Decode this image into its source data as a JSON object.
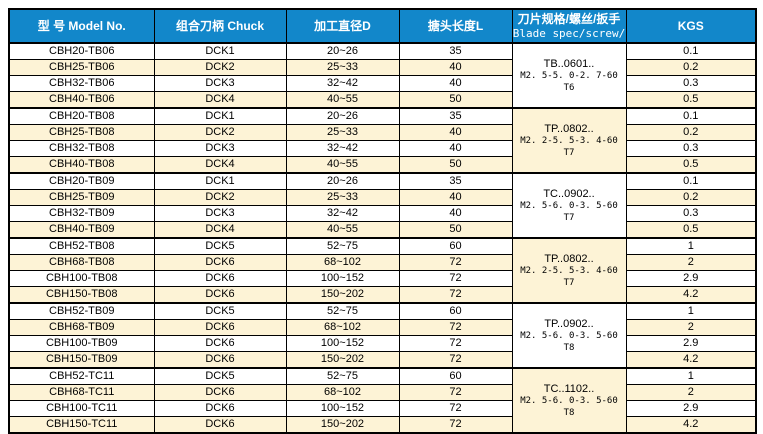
{
  "colors": {
    "header_bg": "#1287CA",
    "header_text": "#FFFFFF",
    "row_white": "#FFFFFF",
    "row_cream": "#FDF3D6",
    "border": "#000000"
  },
  "table": {
    "header": {
      "model": "型 号 Model No.",
      "chuck": "组合刀柄 Chuck",
      "diameter": "加工直径D",
      "length": "搪头长度L",
      "blade_line1": "刀片规格/螺丝/扳手",
      "blade_line2": "Blade spec/screw/",
      "kgs": "KGS"
    },
    "groups": [
      {
        "blade": {
          "code": "TB..0601..",
          "spec": "M2. 5-5. 0-2. 7-60",
          "torx": "T6"
        },
        "blade_bg": "white",
        "rows": [
          {
            "model": "CBH20-TB06",
            "chuck": "DCK1",
            "diameter": "20~26",
            "length": "35",
            "kgs": "0.1"
          },
          {
            "model": "CBH25-TB06",
            "chuck": "DCK2",
            "diameter": "25~33",
            "length": "40",
            "kgs": "0.2"
          },
          {
            "model": "CBH32-TB06",
            "chuck": "DCK3",
            "diameter": "32~42",
            "length": "40",
            "kgs": "0.3"
          },
          {
            "model": "CBH40-TB06",
            "chuck": "DCK4",
            "diameter": "40~55",
            "length": "50",
            "kgs": "0.5"
          }
        ]
      },
      {
        "blade": {
          "code": "TP..0802..",
          "spec": "M2. 2-5. 5-3. 4-60",
          "torx": "T7"
        },
        "blade_bg": "cream",
        "rows": [
          {
            "model": "CBH20-TB08",
            "chuck": "DCK1",
            "diameter": "20~26",
            "length": "35",
            "kgs": "0.1"
          },
          {
            "model": "CBH25-TB08",
            "chuck": "DCK2",
            "diameter": "25~33",
            "length": "40",
            "kgs": "0.2"
          },
          {
            "model": "CBH32-TB08",
            "chuck": "DCK3",
            "diameter": "32~42",
            "length": "40",
            "kgs": "0.3"
          },
          {
            "model": "CBH40-TB08",
            "chuck": "DCK4",
            "diameter": "40~55",
            "length": "50",
            "kgs": "0.5"
          }
        ]
      },
      {
        "blade": {
          "code": "TC..0902..",
          "spec": "M2. 5-6. 0-3. 5-60",
          "torx": "T7"
        },
        "blade_bg": "white",
        "rows": [
          {
            "model": "CBH20-TB09",
            "chuck": "DCK1",
            "diameter": "20~26",
            "length": "35",
            "kgs": "0.1"
          },
          {
            "model": "CBH25-TB09",
            "chuck": "DCK2",
            "diameter": "25~33",
            "length": "40",
            "kgs": "0.2"
          },
          {
            "model": "CBH32-TB09",
            "chuck": "DCK3",
            "diameter": "32~42",
            "length": "40",
            "kgs": "0.3"
          },
          {
            "model": "CBH40-TB09",
            "chuck": "DCK4",
            "diameter": "40~55",
            "length": "50",
            "kgs": "0.5"
          }
        ]
      },
      {
        "blade": {
          "code": "TP..0802..",
          "spec": "M2. 2-5. 5-3. 4-60",
          "torx": "T7"
        },
        "blade_bg": "cream",
        "rows": [
          {
            "model": "CBH52-TB08",
            "chuck": "DCK5",
            "diameter": "52~75",
            "length": "60",
            "kgs": "1"
          },
          {
            "model": "CBH68-TB08",
            "chuck": "DCK6",
            "diameter": "68~102",
            "length": "72",
            "kgs": "2"
          },
          {
            "model": "CBH100-TB08",
            "chuck": "DCK6",
            "diameter": "100~152",
            "length": "72",
            "kgs": "2.9"
          },
          {
            "model": "CBH150-TB08",
            "chuck": "DCK6",
            "diameter": "150~202",
            "length": "72",
            "kgs": "4.2"
          }
        ]
      },
      {
        "blade": {
          "code": "TP..0902..",
          "spec": "M2. 5-6. 0-3. 5-60",
          "torx": "T8"
        },
        "blade_bg": "white",
        "rows": [
          {
            "model": "CBH52-TB09",
            "chuck": "DCK5",
            "diameter": "52~75",
            "length": "60",
            "kgs": "1"
          },
          {
            "model": "CBH68-TB09",
            "chuck": "DCK6",
            "diameter": "68~102",
            "length": "72",
            "kgs": "2"
          },
          {
            "model": "CBH100-TB09",
            "chuck": "DCK6",
            "diameter": "100~152",
            "length": "72",
            "kgs": "2.9"
          },
          {
            "model": "CBH150-TB09",
            "chuck": "DCK6",
            "diameter": "150~202",
            "length": "72",
            "kgs": "4.2"
          }
        ]
      },
      {
        "blade": {
          "code": "TC..1102..",
          "spec": "M2. 5-6. 0-3. 5-60",
          "torx": "T8"
        },
        "blade_bg": "cream",
        "rows": [
          {
            "model": "CBH52-TC11",
            "chuck": "DCK5",
            "diameter": "52~75",
            "length": "60",
            "kgs": "1"
          },
          {
            "model": "CBH68-TC11",
            "chuck": "DCK6",
            "diameter": "68~102",
            "length": "72",
            "kgs": "2"
          },
          {
            "model": "CBH100-TC11",
            "chuck": "DCK6",
            "diameter": "100~152",
            "length": "72",
            "kgs": "2.9"
          },
          {
            "model": "CBH150-TC11",
            "chuck": "DCK6",
            "diameter": "150~202",
            "length": "72",
            "kgs": "4.2"
          }
        ]
      }
    ]
  }
}
